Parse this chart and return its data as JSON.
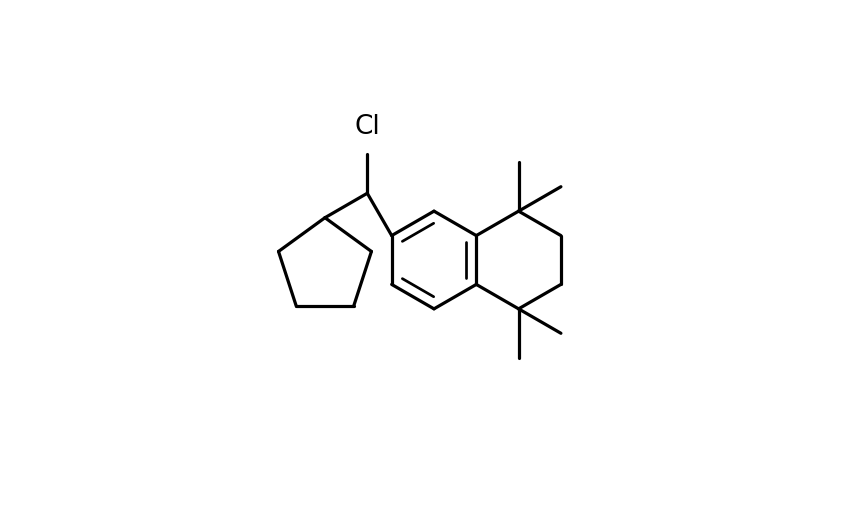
{
  "background": "#ffffff",
  "line_color": "#000000",
  "line_width": 2.3,
  "figsize": [
    8.68,
    5.2
  ],
  "dpi": 100,
  "cl_label": "Cl",
  "cl_fontsize": 19
}
